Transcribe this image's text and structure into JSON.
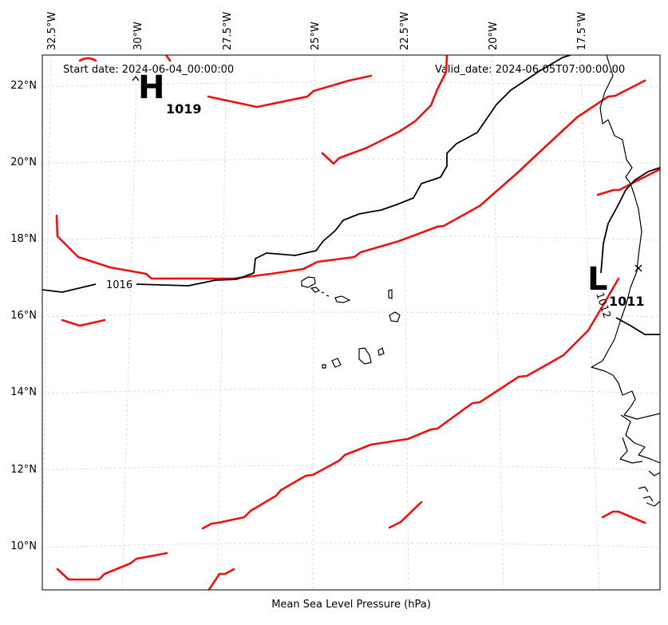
{
  "header": {
    "start_date": "Start date: 2024-06-04_00:00:00",
    "valid_date": "Valid_date: 2024-06-05T07:00:00.00"
  },
  "footer": {
    "caption": "Mean Sea Level Pressure (hPa)"
  },
  "axes": {
    "longitude_ticks": [
      "32.5°W",
      "30°W",
      "27.5°W",
      "25°W",
      "22.5°W",
      "20°W",
      "17.5°W"
    ],
    "latitude_ticks": [
      "22°N",
      "20°N",
      "18°N",
      "16°N",
      "14°N",
      "12°N",
      "10°N"
    ]
  },
  "pressure_centers": [
    {
      "symbol": "H",
      "value": "1019"
    },
    {
      "symbol": "L",
      "value": "1011"
    }
  ],
  "contour_labels": [
    "1016",
    "1012"
  ],
  "colors": {
    "front": "#ee1111",
    "isobar": "#000000",
    "grid": "#cfcfcf"
  }
}
